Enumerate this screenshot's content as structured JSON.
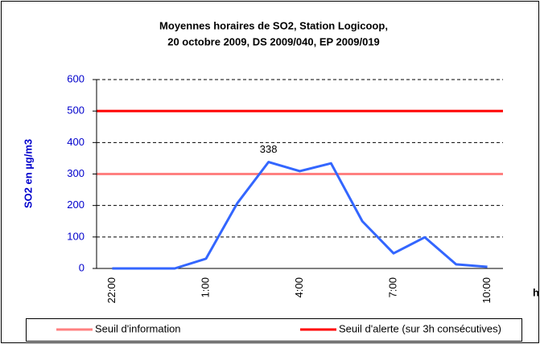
{
  "chart_data": {
    "type": "line",
    "title": [
      "Moyennes horaires de SO2, Station Logicoop,",
      "20 octobre 2009, DS 2009/040, EP 2009/019"
    ],
    "y_label": "SO2 en µg/m3",
    "x_label": "h",
    "categories": [
      "22:00",
      null,
      null,
      "1:00",
      null,
      null,
      "4:00",
      null,
      null,
      "7:00",
      null,
      null,
      "10:00"
    ],
    "series": [
      {
        "color": "#3366ff",
        "values": [
          0,
          0,
          0,
          31,
          207,
          338,
          309,
          334,
          150,
          48,
          99,
          13,
          5
        ],
        "value_labels": [
          null,
          null,
          null,
          null,
          null,
          "338",
          null,
          null,
          null,
          null,
          null,
          null,
          null
        ]
      }
    ],
    "thresholds": [
      {
        "name": "Seuil d'information",
        "color": "#ff8080",
        "value": 300
      },
      {
        "name": "Seuil d'alerte (sur 3h consécutives)",
        "color": "#ff0000",
        "value": 500
      }
    ],
    "ylim": [
      0,
      600
    ],
    "yticks": [
      0,
      100,
      200,
      300,
      400,
      500,
      600
    ],
    "grid": true,
    "legend": "bottom"
  }
}
